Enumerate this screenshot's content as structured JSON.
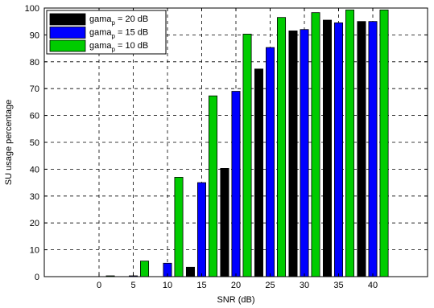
{
  "chart_data": {
    "type": "bar",
    "xlabel": "SNR (dB)",
    "ylabel": "SU usage percentage",
    "categories": [
      "0",
      "5",
      "10",
      "15",
      "20",
      "25",
      "30",
      "35",
      "40"
    ],
    "xlim": [
      -8,
      48
    ],
    "ylim": [
      0,
      100
    ],
    "yticks": [
      "0",
      "10",
      "20",
      "30",
      "40",
      "50",
      "60",
      "70",
      "80",
      "90",
      "100"
    ],
    "grid": true,
    "legend_position": "top-left",
    "series": [
      {
        "name_base": "gama",
        "name_sub": "p",
        "name_rest": " = 20 dB",
        "color": "#000000",
        "values": [
          0,
          0,
          0,
          3.5,
          40.3,
          77.3,
          91.5,
          95.5,
          95.0
        ]
      },
      {
        "name_base": "gama",
        "name_sub": "p",
        "name_rest": " = 15 dB",
        "color": "#0000ff",
        "values": [
          0,
          0.3,
          5.0,
          35.0,
          69.0,
          85.3,
          92.0,
          94.5,
          95.0
        ]
      },
      {
        "name_base": "gama",
        "name_sub": "p",
        "name_rest": " = 10 dB",
        "color": "#00cc00",
        "values": [
          0.3,
          5.8,
          37.0,
          67.3,
          90.3,
          96.5,
          98.3,
          99.3,
          99.3
        ]
      }
    ]
  }
}
